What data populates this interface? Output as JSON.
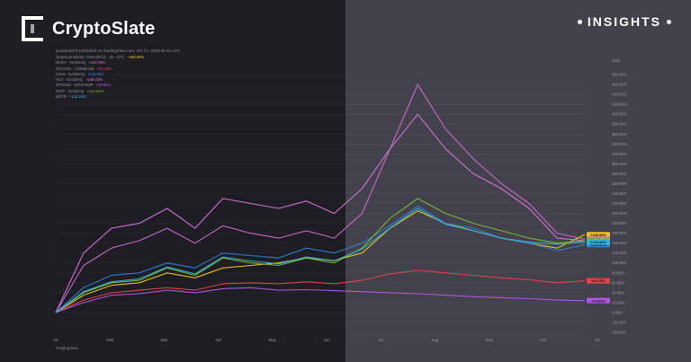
{
  "brand": {
    "name": "CryptoSlate"
  },
  "badge": {
    "label": "INSIGHTS"
  },
  "source": {
    "publisher_line": "jonathan678 published on TradingView.com, Oct 17, 2023 08:41 UTC",
    "footer": "TradingView"
  },
  "colors": {
    "left_panel": "#1f1d24",
    "right_panel": "#43424c"
  },
  "chart_data": {
    "type": "line",
    "ylabel": "USD",
    "x": [
      "2023-01-01",
      "2023-01-15",
      "2023-02-01",
      "2023-02-15",
      "2023-03-01",
      "2023-03-15",
      "2023-04-01",
      "2023-04-15",
      "2023-05-01",
      "2023-05-15",
      "2023-06-01",
      "2023-06-15",
      "2023-07-01",
      "2023-07-15",
      "2023-08-01",
      "2023-08-15",
      "2023-09-01",
      "2023-09-15",
      "2023-10-01",
      "2023-10-15"
    ],
    "x_tick_labels": [
      "23",
      "Feb",
      "Mar",
      "Apr",
      "May",
      "Jun",
      "Jul",
      "Aug",
      "Sep",
      "Oct",
      "23"
    ],
    "ylim": [
      -40,
      500
    ],
    "y_ticks": [
      -40,
      -20,
      0,
      20,
      40,
      60,
      80,
      100,
      120,
      140,
      160,
      180,
      200,
      220,
      240,
      260,
      280,
      300,
      320,
      340,
      360,
      380,
      400,
      420,
      440,
      460,
      480
    ],
    "grid": true,
    "legend_position": "top-left",
    "series": [
      {
        "name": "Grayscale Bitcoin Trust (BTC) · 15 · OTC",
        "value_label": "+156.98%",
        "color": "#f0c419",
        "values": [
          0,
          35,
          55,
          60,
          80,
          70,
          90,
          95,
          100,
          110,
          105,
          120,
          170,
          205,
          180,
          165,
          150,
          140,
          130,
          157
        ]
      },
      {
        "name": "MARA · NASDAQ",
        "value_label": "+148.45%",
        "color": "#cf6bd0",
        "values": [
          0,
          95,
          130,
          145,
          170,
          140,
          175,
          160,
          150,
          165,
          150,
          200,
          330,
          460,
          370,
          310,
          260,
          220,
          160,
          148
        ]
      },
      {
        "name": "BTCUSD · COINBASE",
        "value_label": "+64.15%",
        "color": "#e2434b",
        "values": [
          0,
          25,
          40,
          45,
          50,
          45,
          58,
          60,
          58,
          62,
          58,
          65,
          78,
          85,
          80,
          75,
          70,
          66,
          60,
          64
        ]
      },
      {
        "name": "COIN · NASDAQ",
        "value_label": "+136.96%",
        "color": "#2e7fd6",
        "values": [
          0,
          50,
          75,
          80,
          100,
          90,
          120,
          115,
          110,
          130,
          120,
          140,
          175,
          215,
          180,
          170,
          150,
          140,
          125,
          137
        ]
      },
      {
        "name": "HUT · NASDAQ",
        "value_label": "+145.43%",
        "color": "#d874e0",
        "values": [
          0,
          120,
          170,
          180,
          210,
          170,
          230,
          220,
          210,
          225,
          200,
          250,
          330,
          400,
          330,
          280,
          250,
          210,
          150,
          145
        ]
      },
      {
        "name": "ETHUSD · BITSTAMP",
        "value_label": "+23.62%",
        "color": "#b455e0",
        "values": [
          0,
          20,
          35,
          38,
          45,
          40,
          48,
          50,
          45,
          46,
          44,
          42,
          40,
          38,
          35,
          32,
          30,
          28,
          25,
          24
        ]
      },
      {
        "name": "RIOT · NASDAQ",
        "value_label": "+144.62%",
        "color": "#7ab83a",
        "values": [
          0,
          40,
          60,
          65,
          90,
          75,
          110,
          100,
          95,
          110,
          100,
          130,
          190,
          230,
          200,
          180,
          165,
          150,
          140,
          145
        ]
      },
      {
        "name": "MSTR",
        "value_label": "+142.26%",
        "color": "#34b2d8",
        "values": [
          0,
          42,
          62,
          68,
          92,
          78,
          112,
          104,
          98,
          112,
          104,
          128,
          170,
          210,
          178,
          165,
          150,
          142,
          138,
          142
        ]
      }
    ]
  }
}
